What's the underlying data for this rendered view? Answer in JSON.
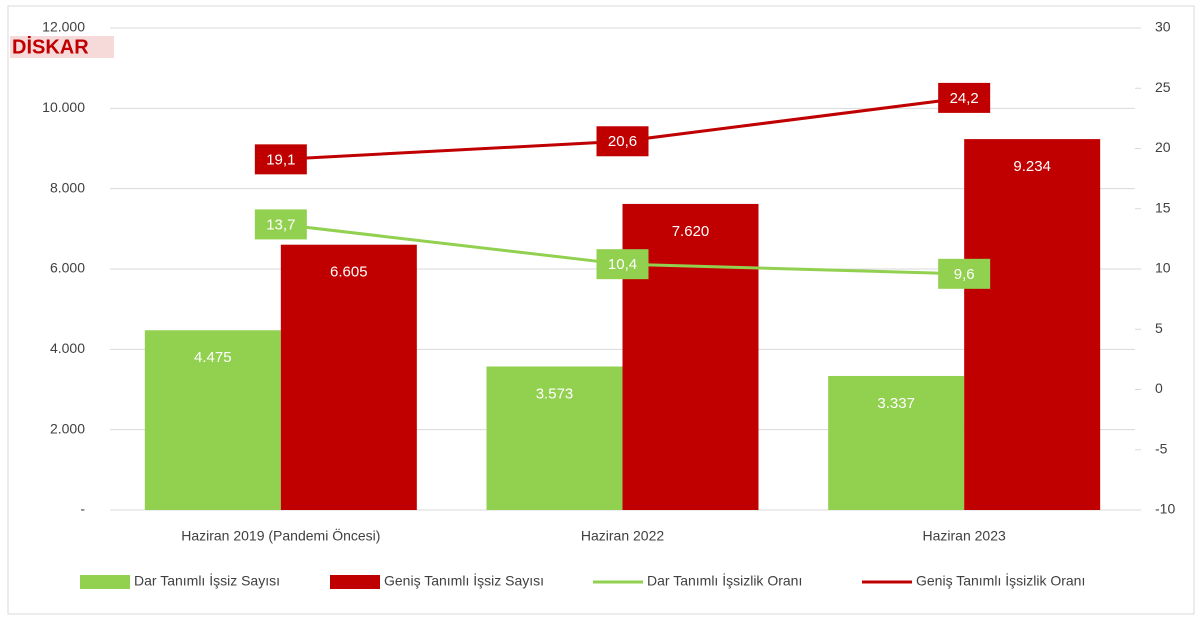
{
  "chart_data": {
    "type": "bar",
    "logo": "DİSKAR",
    "categories": [
      "Haziran 2019 (Pandemi Öncesi)",
      "Haziran 2022",
      "Haziran 2023"
    ],
    "series": [
      {
        "name": "Dar Tanımlı İşsiz Sayısı",
        "type": "bar",
        "color": "#92d050",
        "values": [
          4475,
          3573,
          3337
        ],
        "value_labels": [
          "4.475",
          "3.573",
          "3.337"
        ]
      },
      {
        "name": "Geniş Tanımlı İşsiz Sayısı",
        "type": "bar",
        "color": "#c00000",
        "values": [
          6605,
          7620,
          9234
        ],
        "value_labels": [
          "6.605",
          "7.620",
          "9.234"
        ]
      },
      {
        "name": "Dar Tanımlı İşsizlik Oranı",
        "type": "line",
        "axis": "y2",
        "color": "#92d050",
        "values": [
          13.7,
          10.4,
          9.6
        ],
        "value_labels": [
          "13,7",
          "10,4",
          "9,6"
        ]
      },
      {
        "name": "Geniş Tanımlı İşsizlik Oranı",
        "type": "line",
        "axis": "y2",
        "color": "#c00000",
        "values": [
          19.1,
          20.6,
          24.2
        ],
        "value_labels": [
          "19,1",
          "20,6",
          "24,2"
        ]
      }
    ],
    "ylim": [
      0,
      12000
    ],
    "yticks": [
      {
        "value": 0,
        "label": "-"
      },
      {
        "value": 2000,
        "label": "2.000"
      },
      {
        "value": 4000,
        "label": "4.000"
      },
      {
        "value": 6000,
        "label": "6.000"
      },
      {
        "value": 8000,
        "label": "8.000"
      },
      {
        "value": 10000,
        "label": "10.000"
      },
      {
        "value": 12000,
        "label": "12.000"
      }
    ],
    "y2lim": [
      -10,
      30
    ],
    "y2ticks": [
      -10,
      -5,
      0,
      5,
      10,
      15,
      20,
      25,
      30
    ],
    "grid": true,
    "legend": "bottom"
  }
}
